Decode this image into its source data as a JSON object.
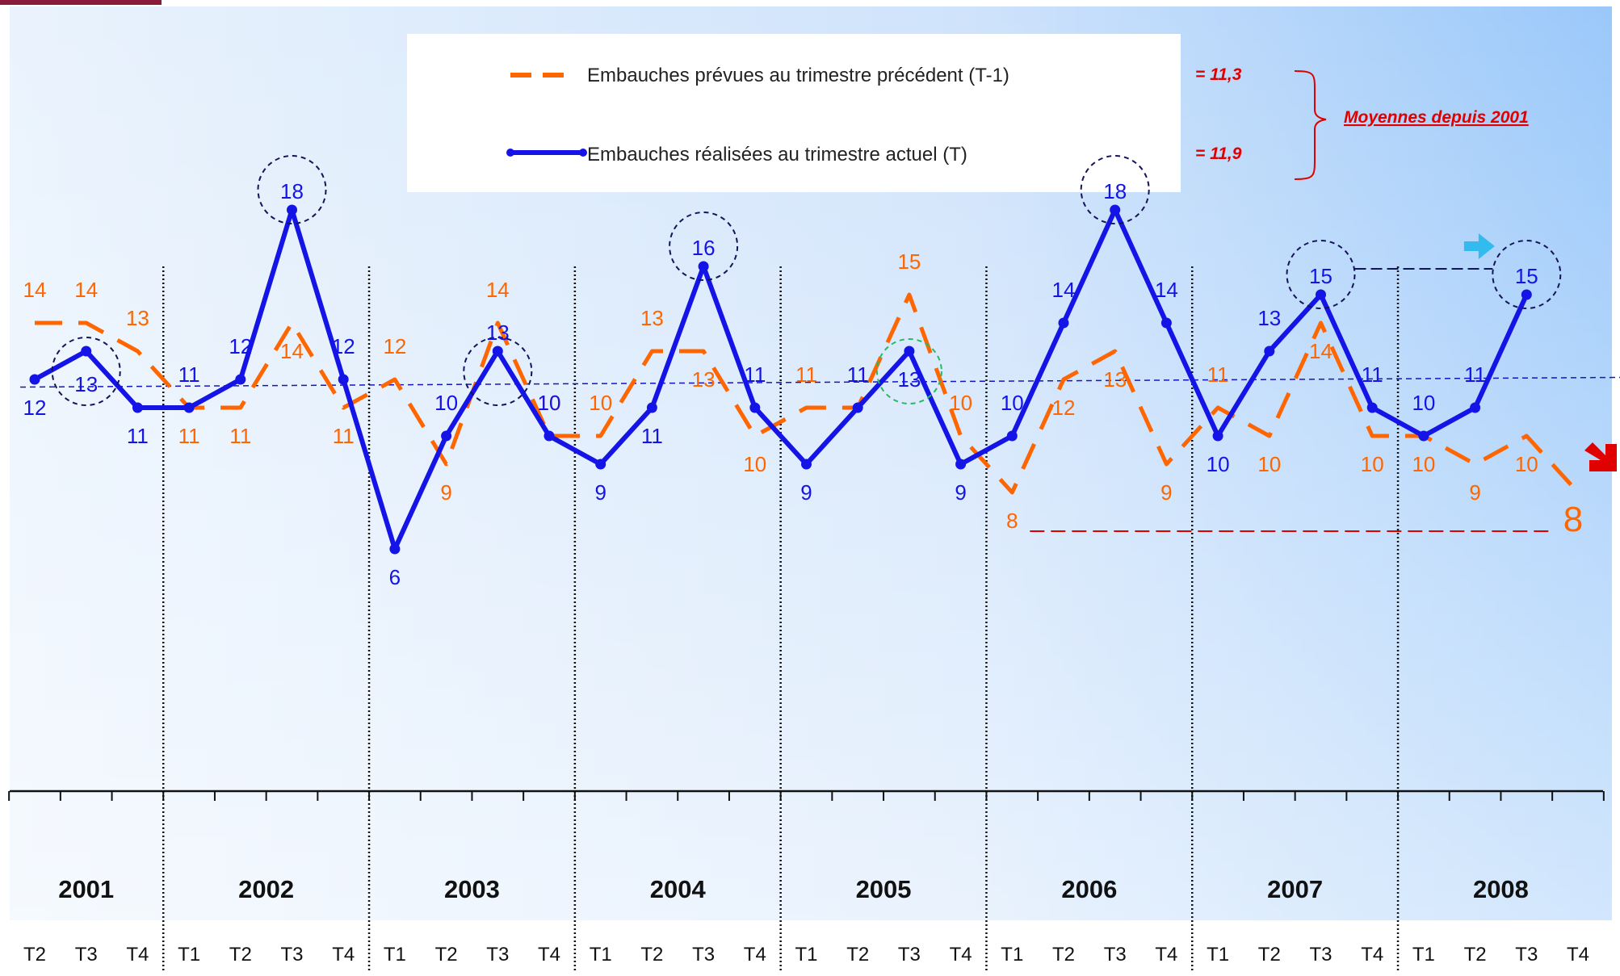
{
  "legend": {
    "planned_label": "Embauches prévues au trimestre précédent (T-1)",
    "planned_avg": "= 11,3",
    "actual_label": "Embauches réalisées au trimestre actuel (T)",
    "actual_avg": "= 11,9",
    "averages_note": "Moyennes depuis 2001"
  },
  "colors": {
    "planned": "#FF6600",
    "actual": "#1414E6",
    "highlight_red": "#E00000",
    "arrow_up": "#33BBEE",
    "circle_dash": "#14145A",
    "circle_green": "#22BB66"
  },
  "chart_data": {
    "type": "line",
    "categories": [
      "T2",
      "T3",
      "T4",
      "T1",
      "T2",
      "T3",
      "T4",
      "T1",
      "T2",
      "T3",
      "T4",
      "T1",
      "T2",
      "T3",
      "T4",
      "T1",
      "T2",
      "T3",
      "T4",
      "T1",
      "T2",
      "T3",
      "T4",
      "T1",
      "T2",
      "T3",
      "T4",
      "T1",
      "T2",
      "T3",
      "T4"
    ],
    "years": [
      "2001",
      "2002",
      "2003",
      "2004",
      "2005",
      "2006",
      "2007",
      "2008"
    ],
    "year_spans": [
      [
        0,
        2
      ],
      [
        3,
        6
      ],
      [
        7,
        10
      ],
      [
        11,
        14
      ],
      [
        15,
        18
      ],
      [
        19,
        22
      ],
      [
        23,
        26
      ],
      [
        27,
        30
      ]
    ],
    "series": [
      {
        "name": "Embauches prévues au trimestre précédent (T-1)",
        "style": "dashed",
        "values": [
          14,
          14,
          13,
          11,
          11,
          14,
          11,
          12,
          9,
          14,
          10,
          10,
          13,
          13,
          10,
          11,
          11,
          15,
          10,
          8,
          12,
          13,
          9,
          11,
          10,
          14,
          10,
          10,
          9,
          10,
          8
        ]
      },
      {
        "name": "Embauches réalisées au trimestre actuel (T)",
        "style": "solid-markers",
        "values": [
          12,
          13,
          11,
          11,
          12,
          18,
          12,
          6,
          10,
          13,
          10,
          9,
          11,
          16,
          11,
          9,
          11,
          13,
          9,
          10,
          14,
          18,
          14,
          10,
          13,
          15,
          11,
          10,
          11,
          15,
          null
        ]
      }
    ],
    "ylim": [
      0,
      20
    ],
    "average_line": 11.9,
    "highlights_actual": [
      1,
      5,
      9,
      13,
      21,
      25,
      29
    ],
    "highlight_planned": 17,
    "last_forecast": "8"
  }
}
